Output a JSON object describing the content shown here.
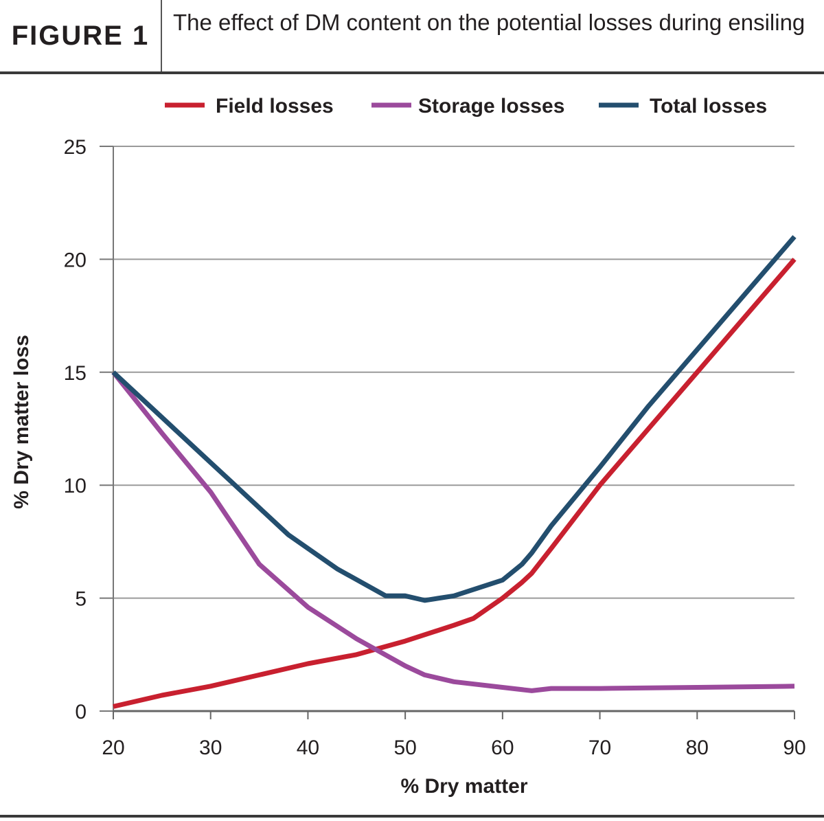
{
  "header": {
    "figure_label": "FIGURE 1",
    "title": "The effect of DM content on the potential losses during ensiling"
  },
  "chart_data": {
    "type": "line",
    "xlabel": "% Dry matter",
    "ylabel": "% Dry matter loss",
    "xlim": [
      20,
      90
    ],
    "ylim": [
      0,
      25
    ],
    "xticks": [
      20,
      30,
      40,
      50,
      60,
      70,
      80,
      90
    ],
    "yticks": [
      0,
      5,
      10,
      15,
      20,
      25
    ],
    "grid": "horizontal",
    "legend_position": "top",
    "series": [
      {
        "name": "Field losses",
        "color": "#c8202f",
        "x": [
          20,
          25,
          30,
          35,
          40,
          45,
          50,
          55,
          57,
          60,
          62,
          63,
          65,
          70,
          75,
          80,
          85,
          90
        ],
        "y": [
          0.2,
          0.7,
          1.1,
          1.6,
          2.1,
          2.5,
          3.1,
          3.8,
          4.1,
          5.0,
          5.7,
          6.1,
          7.2,
          10.0,
          12.5,
          15.0,
          17.5,
          20.0
        ]
      },
      {
        "name": "Storage losses",
        "color": "#9b4a9c",
        "x": [
          20,
          25,
          30,
          35,
          40,
          45,
          50,
          52,
          55,
          60,
          63,
          65,
          70,
          80,
          90
        ],
        "y": [
          15.0,
          12.3,
          9.7,
          6.5,
          4.6,
          3.2,
          2.0,
          1.6,
          1.3,
          1.05,
          0.9,
          1.0,
          1.0,
          1.05,
          1.1
        ]
      },
      {
        "name": "Total losses",
        "color": "#234e6e",
        "x": [
          20,
          25,
          30,
          32,
          35,
          38,
          40,
          43,
          48,
          50,
          52,
          55,
          60,
          62,
          63,
          65,
          70,
          75,
          80,
          85,
          90
        ],
        "y": [
          15.0,
          13.0,
          11.0,
          10.2,
          9.0,
          7.8,
          7.2,
          6.3,
          5.1,
          5.1,
          4.9,
          5.1,
          5.8,
          6.5,
          7.0,
          8.2,
          10.8,
          13.5,
          16.0,
          18.5,
          21.0
        ]
      }
    ]
  }
}
